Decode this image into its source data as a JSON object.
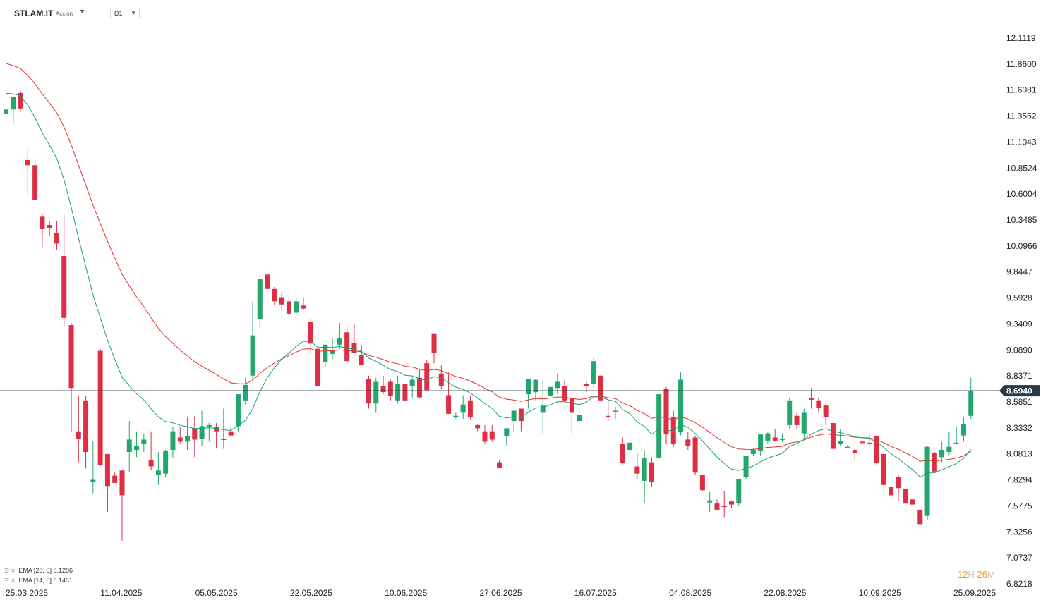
{
  "header": {
    "symbol": "STLAM.IT",
    "type": "Acción",
    "timeframe": "D1"
  },
  "colors": {
    "up": "#22a66b",
    "down": "#dd2e44",
    "ema14": "#12a37a",
    "ema28": "#e0362c",
    "price_line": "#1f3340",
    "price_label_bg": "#2a3a46"
  },
  "legend": [
    {
      "name": "EMA",
      "params": "[28, 0]",
      "value": "8.1286"
    },
    {
      "name": "EMA",
      "params": "[14, 0]",
      "value": "8.1451"
    }
  ],
  "timer": {
    "h": "12",
    "h_unit": "H",
    "m": "26",
    "m_unit": "M"
  },
  "chart_data": {
    "type": "candlestick",
    "ylim": [
      6.8218,
      12.1119
    ],
    "y_ticks": [
      "12.1119",
      "11.8600",
      "11.6081",
      "11.3562",
      "11.1043",
      "10.8524",
      "10.6004",
      "10.3485",
      "10.0966",
      "9.8447",
      "9.5928",
      "9.3409",
      "9.0890",
      "8.8371",
      "8.5851",
      "8.3332",
      "8.0813",
      "7.8294",
      "7.5775",
      "7.3256",
      "7.0737",
      "6.8218"
    ],
    "x_ticks": [
      "25.03.2025",
      "11.04.2025",
      "05.05.2025",
      "22.05.2025",
      "10.06.2025",
      "27.06.2025",
      "16.07.2025",
      "04.08.2025",
      "22.08.2025",
      "10.09.2025",
      "25.09.2025"
    ],
    "current_price": "8.6940",
    "candles": [
      [
        11.38,
        11.42,
        11.3,
        11.42
      ],
      [
        11.42,
        11.55,
        11.28,
        11.54
      ],
      [
        11.58,
        11.6,
        11.4,
        11.43
      ],
      [
        10.93,
        11.03,
        10.6,
        10.88
      ],
      [
        10.88,
        10.95,
        10.54,
        10.54
      ],
      [
        10.38,
        10.4,
        10.08,
        10.26
      ],
      [
        10.3,
        10.34,
        10.2,
        10.27
      ],
      [
        10.22,
        10.34,
        10.06,
        10.12
      ],
      [
        10.0,
        10.4,
        9.32,
        9.4
      ],
      [
        9.33,
        9.35,
        8.3,
        8.72
      ],
      [
        8.3,
        8.64,
        8.0,
        8.23
      ],
      [
        8.6,
        8.64,
        7.94,
        8.1
      ],
      [
        7.81,
        8.2,
        7.7,
        7.83
      ],
      [
        9.08,
        9.1,
        7.96,
        7.97
      ],
      [
        8.08,
        8.08,
        7.52,
        7.77
      ],
      [
        7.87,
        7.9,
        7.8,
        7.8
      ],
      [
        7.92,
        7.92,
        7.24,
        7.68
      ],
      [
        8.1,
        8.4,
        7.9,
        8.22
      ],
      [
        8.12,
        8.3,
        8.05,
        8.16
      ],
      [
        8.18,
        8.28,
        8.1,
        8.22
      ],
      [
        8.02,
        8.3,
        7.92,
        7.96
      ],
      [
        7.88,
        8.1,
        7.78,
        7.92
      ],
      [
        7.89,
        8.12,
        7.86,
        8.11
      ],
      [
        8.12,
        8.34,
        8.04,
        8.3
      ],
      [
        8.24,
        8.34,
        8.18,
        8.2
      ],
      [
        8.2,
        8.44,
        8.12,
        8.25
      ],
      [
        8.33,
        8.45,
        8.05,
        8.22
      ],
      [
        8.23,
        8.5,
        8.16,
        8.35
      ],
      [
        8.35,
        8.38,
        8.2,
        8.36
      ],
      [
        8.34,
        8.38,
        8.14,
        8.3
      ],
      [
        8.23,
        8.52,
        8.13,
        8.22
      ],
      [
        8.3,
        8.35,
        8.24,
        8.26
      ],
      [
        8.35,
        8.66,
        8.3,
        8.66
      ],
      [
        8.6,
        8.82,
        8.56,
        8.75
      ],
      [
        8.84,
        9.55,
        8.8,
        9.23
      ],
      [
        9.39,
        9.8,
        9.3,
        9.78
      ],
      [
        9.82,
        9.84,
        9.66,
        9.68
      ],
      [
        9.68,
        9.7,
        9.52,
        9.56
      ],
      [
        9.6,
        9.64,
        9.48,
        9.53
      ],
      [
        9.56,
        9.62,
        9.42,
        9.44
      ],
      [
        9.45,
        9.6,
        9.42,
        9.56
      ],
      [
        9.52,
        9.6,
        9.48,
        9.49
      ],
      [
        9.36,
        9.4,
        9.05,
        9.15
      ],
      [
        9.1,
        9.1,
        8.64,
        8.74
      ],
      [
        8.97,
        9.16,
        8.92,
        9.14
      ],
      [
        9.05,
        9.2,
        9.0,
        9.08
      ],
      [
        9.14,
        9.35,
        9.1,
        9.2
      ],
      [
        9.26,
        9.32,
        8.97,
        8.98
      ],
      [
        9.16,
        9.34,
        9.06,
        9.06
      ],
      [
        9.04,
        9.14,
        8.95,
        8.94
      ],
      [
        8.81,
        8.84,
        8.52,
        8.57
      ],
      [
        8.57,
        8.82,
        8.48,
        8.78
      ],
      [
        8.74,
        8.84,
        8.66,
        8.68
      ],
      [
        8.78,
        8.8,
        8.6,
        8.64
      ],
      [
        8.6,
        8.84,
        8.57,
        8.76
      ],
      [
        8.76,
        8.76,
        8.6,
        8.6
      ],
      [
        8.74,
        8.82,
        8.63,
        8.8
      ],
      [
        8.82,
        8.9,
        8.62,
        8.63
      ],
      [
        8.96,
        8.99,
        8.7,
        8.7
      ],
      [
        9.25,
        9.25,
        8.96,
        9.06
      ],
      [
        8.86,
        8.94,
        8.71,
        8.74
      ],
      [
        8.65,
        8.87,
        8.47,
        8.47
      ],
      [
        8.44,
        8.48,
        8.42,
        8.45
      ],
      [
        8.48,
        8.65,
        8.42,
        8.56
      ],
      [
        8.6,
        8.65,
        8.42,
        8.44
      ],
      [
        8.36,
        8.37,
        8.3,
        8.33
      ],
      [
        8.3,
        8.36,
        8.18,
        8.2
      ],
      [
        8.3,
        8.36,
        8.2,
        8.22
      ],
      [
        8.0,
        8.02,
        7.94,
        7.95
      ],
      [
        8.25,
        8.28,
        8.16,
        8.33
      ],
      [
        8.4,
        8.45,
        8.3,
        8.5
      ],
      [
        8.52,
        8.52,
        8.3,
        8.4
      ],
      [
        8.66,
        8.8,
        8.52,
        8.81
      ],
      [
        8.68,
        8.81,
        8.6,
        8.8
      ],
      [
        8.48,
        8.8,
        8.28,
        8.55
      ],
      [
        8.64,
        8.73,
        8.62,
        8.73
      ],
      [
        8.72,
        8.86,
        8.66,
        8.78
      ],
      [
        8.74,
        8.8,
        8.58,
        8.6
      ],
      [
        8.62,
        8.64,
        8.28,
        8.48
      ],
      [
        8.4,
        8.64,
        8.36,
        8.46
      ],
      [
        8.76,
        8.78,
        8.68,
        8.74
      ],
      [
        8.76,
        9.02,
        8.72,
        8.98
      ],
      [
        8.84,
        8.86,
        8.58,
        8.6
      ],
      [
        8.45,
        8.6,
        8.4,
        8.44
      ],
      [
        8.49,
        8.54,
        8.42,
        8.5
      ],
      [
        8.18,
        8.24,
        7.98,
        7.99
      ],
      [
        8.12,
        8.3,
        8.08,
        8.19
      ],
      [
        7.96,
        8.09,
        7.84,
        7.89
      ],
      [
        7.82,
        8.12,
        7.6,
        8.04
      ],
      [
        8.0,
        8.05,
        7.76,
        7.81
      ],
      [
        8.04,
        8.62,
        8.04,
        8.66
      ],
      [
        8.71,
        8.73,
        8.18,
        8.27
      ],
      [
        8.44,
        8.5,
        8.15,
        8.18
      ],
      [
        8.29,
        8.87,
        8.26,
        8.8
      ],
      [
        8.22,
        8.29,
        8.12,
        8.16
      ],
      [
        8.24,
        8.26,
        7.88,
        7.9
      ],
      [
        7.88,
        7.88,
        7.72,
        7.73
      ],
      [
        7.61,
        7.71,
        7.52,
        7.63
      ],
      [
        7.6,
        7.64,
        7.54,
        7.54
      ],
      [
        7.58,
        7.72,
        7.47,
        7.57
      ],
      [
        7.62,
        7.62,
        7.56,
        7.59
      ],
      [
        7.6,
        7.84,
        7.58,
        7.84
      ],
      [
        7.86,
        8.06,
        7.84,
        8.06
      ],
      [
        8.08,
        8.14,
        8.06,
        8.12
      ],
      [
        8.11,
        8.26,
        8.06,
        8.27
      ],
      [
        8.21,
        8.29,
        8.18,
        8.28
      ],
      [
        8.24,
        8.32,
        8.2,
        8.21
      ],
      [
        8.22,
        8.28,
        8.2,
        8.23
      ],
      [
        8.36,
        8.62,
        8.32,
        8.6
      ],
      [
        8.45,
        8.48,
        8.32,
        8.36
      ],
      [
        8.28,
        8.52,
        8.22,
        8.48
      ],
      [
        8.62,
        8.72,
        8.52,
        8.61
      ],
      [
        8.6,
        8.63,
        8.48,
        8.53
      ],
      [
        8.55,
        8.57,
        8.36,
        8.44
      ],
      [
        8.38,
        8.44,
        8.12,
        8.13
      ],
      [
        8.18,
        8.32,
        8.16,
        8.21
      ],
      [
        8.14,
        8.17,
        8.14,
        8.15
      ],
      [
        8.12,
        8.14,
        8.02,
        8.09
      ],
      [
        8.2,
        8.28,
        8.16,
        8.19
      ],
      [
        8.18,
        8.28,
        8.16,
        8.19
      ],
      [
        8.25,
        8.26,
        7.97,
        7.99
      ],
      [
        8.08,
        8.1,
        7.66,
        7.78
      ],
      [
        7.76,
        7.76,
        7.64,
        7.68
      ],
      [
        7.86,
        7.88,
        7.63,
        7.75
      ],
      [
        7.74,
        7.74,
        7.6,
        7.6
      ],
      [
        7.64,
        7.64,
        7.52,
        7.59
      ],
      [
        7.54,
        7.54,
        7.42,
        7.4
      ],
      [
        7.48,
        8.16,
        7.44,
        8.15
      ],
      [
        8.09,
        8.1,
        7.9,
        7.91
      ],
      [
        8.05,
        8.2,
        8.0,
        8.12
      ],
      [
        8.1,
        8.3,
        8.07,
        8.15
      ],
      [
        8.18,
        8.35,
        8.18,
        8.19
      ],
      [
        8.26,
        8.44,
        8.2,
        8.37
      ],
      [
        8.45,
        8.82,
        8.42,
        8.69
      ]
    ]
  }
}
